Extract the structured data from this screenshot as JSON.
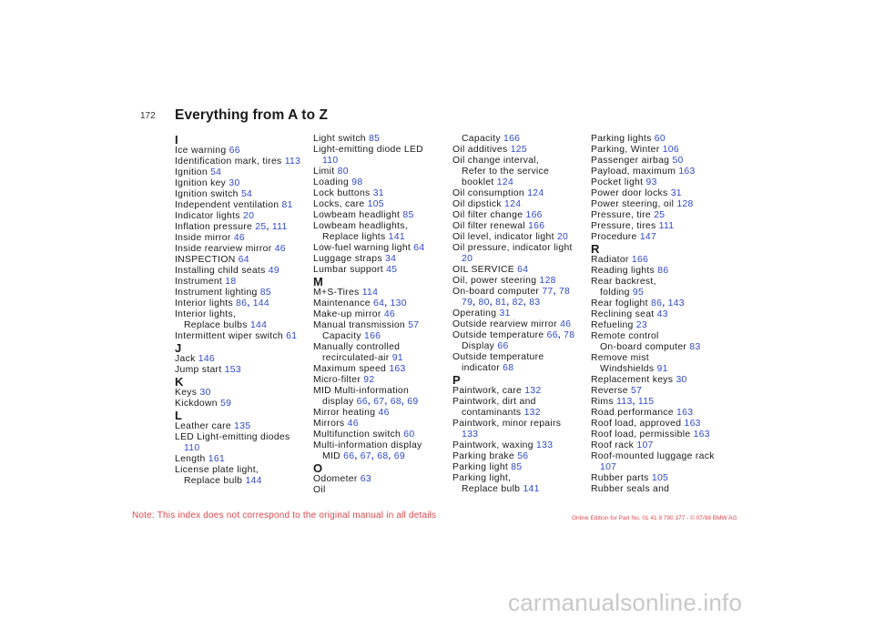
{
  "page": {
    "number": "172",
    "title": "Everything from A to Z",
    "note": "Note: This index does not correspond to the original manual in all details",
    "edition": "Online Edition for Part No. 01 41 9 790 377 - © 07/98 BMW AG",
    "watermark": "carmanualsonline.info"
  },
  "columns": [
    [
      {
        "type": "letter",
        "text": "I"
      },
      {
        "lines": [
          {
            "t": "Ice warning",
            "p": [
              "66"
            ]
          }
        ]
      },
      {
        "lines": [
          {
            "t": "Identification mark, tires",
            "p": [
              "113"
            ]
          }
        ]
      },
      {
        "lines": [
          {
            "t": "Ignition",
            "p": [
              "54"
            ]
          }
        ]
      },
      {
        "lines": [
          {
            "t": "Ignition key",
            "p": [
              "30"
            ]
          }
        ]
      },
      {
        "lines": [
          {
            "t": "Ignition switch",
            "p": [
              "54"
            ]
          }
        ]
      },
      {
        "lines": [
          {
            "t": "Independent ventilation",
            "p": [
              "81"
            ]
          }
        ]
      },
      {
        "lines": [
          {
            "t": "Indicator lights",
            "p": [
              "20"
            ]
          }
        ]
      },
      {
        "lines": [
          {
            "t": "Inflation pressure",
            "p": [
              "25",
              "111"
            ]
          }
        ]
      },
      {
        "lines": [
          {
            "t": "Inside mirror",
            "p": [
              "46"
            ]
          }
        ]
      },
      {
        "lines": [
          {
            "t": "Inside rearview mirror",
            "p": [
              "46"
            ]
          }
        ]
      },
      {
        "lines": [
          {
            "t": "INSPECTION",
            "p": [
              "64"
            ]
          }
        ]
      },
      {
        "lines": [
          {
            "t": "Installing child seats",
            "p": [
              "49"
            ]
          }
        ]
      },
      {
        "lines": [
          {
            "t": "Instrument",
            "p": [
              "18"
            ]
          }
        ]
      },
      {
        "lines": [
          {
            "t": "Instrument lighting",
            "p": [
              "85"
            ]
          }
        ]
      },
      {
        "lines": [
          {
            "t": "Interior lights",
            "p": [
              "86",
              "144"
            ]
          }
        ]
      },
      {
        "lines": [
          {
            "t": "Interior lights,"
          },
          {
            "t": "Replace bulbs",
            "p": [
              "144"
            ]
          }
        ]
      },
      {
        "lines": [
          {
            "t": "Intermittent wiper switch",
            "p": [
              "61"
            ]
          }
        ]
      },
      {
        "type": "letter",
        "text": "J"
      },
      {
        "lines": [
          {
            "t": "Jack",
            "p": [
              "146"
            ]
          }
        ]
      },
      {
        "lines": [
          {
            "t": "Jump start",
            "p": [
              "153"
            ]
          }
        ]
      },
      {
        "type": "letter",
        "text": "K"
      },
      {
        "lines": [
          {
            "t": "Keys",
            "p": [
              "30"
            ]
          }
        ]
      },
      {
        "lines": [
          {
            "t": "Kickdown",
            "p": [
              "59"
            ]
          }
        ]
      },
      {
        "type": "letter",
        "text": "L"
      },
      {
        "lines": [
          {
            "t": "Leather care",
            "p": [
              "135"
            ]
          }
        ]
      },
      {
        "lines": [
          {
            "t": "LED Light-emitting diodes"
          },
          {
            "t": "",
            "p": [
              "110"
            ]
          }
        ]
      },
      {
        "lines": [
          {
            "t": "Length",
            "p": [
              "161"
            ]
          }
        ]
      },
      {
        "lines": [
          {
            "t": "License plate light,"
          },
          {
            "t": "Replace bulb",
            "p": [
              "144"
            ]
          }
        ]
      }
    ],
    [
      {
        "lines": [
          {
            "t": "Light switch",
            "p": [
              "85"
            ]
          }
        ]
      },
      {
        "lines": [
          {
            "t": "Light-emitting diode LED"
          },
          {
            "t": "",
            "p": [
              "110"
            ]
          }
        ]
      },
      {
        "lines": [
          {
            "t": "Limit",
            "p": [
              "80"
            ]
          }
        ]
      },
      {
        "lines": [
          {
            "t": "Loading",
            "p": [
              "98"
            ]
          }
        ]
      },
      {
        "lines": [
          {
            "t": "Lock buttons",
            "p": [
              "31"
            ]
          }
        ]
      },
      {
        "lines": [
          {
            "t": "Locks, care",
            "p": [
              "105"
            ]
          }
        ]
      },
      {
        "lines": [
          {
            "t": "Lowbeam headlight",
            "p": [
              "85"
            ]
          }
        ]
      },
      {
        "lines": [
          {
            "t": "Lowbeam headlights,"
          },
          {
            "t": "Replace lights",
            "p": [
              "141"
            ]
          }
        ]
      },
      {
        "lines": [
          {
            "t": "Low-fuel warning light",
            "p": [
              "64"
            ]
          }
        ]
      },
      {
        "lines": [
          {
            "t": "Luggage straps",
            "p": [
              "34"
            ]
          }
        ]
      },
      {
        "lines": [
          {
            "t": "Lumbar support",
            "p": [
              "45"
            ]
          }
        ]
      },
      {
        "type": "letter",
        "text": "M"
      },
      {
        "lines": [
          {
            "t": "M+S-Tires",
            "p": [
              "114"
            ]
          }
        ]
      },
      {
        "lines": [
          {
            "t": "Maintenance",
            "p": [
              "64",
              "130"
            ]
          }
        ]
      },
      {
        "lines": [
          {
            "t": "Make-up mirror",
            "p": [
              "46"
            ]
          }
        ]
      },
      {
        "lines": [
          {
            "t": "Manual transmission",
            "p": [
              "57"
            ]
          },
          {
            "t": "Capacity",
            "p": [
              "166"
            ]
          }
        ]
      },
      {
        "lines": [
          {
            "t": "Manually controlled"
          },
          {
            "t": "recirculated-air",
            "p": [
              "91"
            ]
          }
        ]
      },
      {
        "lines": [
          {
            "t": "Maximum speed",
            "p": [
              "163"
            ]
          }
        ]
      },
      {
        "lines": [
          {
            "t": "Micro-filter",
            "p": [
              "92"
            ]
          }
        ]
      },
      {
        "lines": [
          {
            "t": "MID Multi-information"
          },
          {
            "t": "display",
            "p": [
              "66",
              "67",
              "68",
              "69"
            ]
          }
        ]
      },
      {
        "lines": [
          {
            "t": "Mirror heating",
            "p": [
              "46"
            ]
          }
        ]
      },
      {
        "lines": [
          {
            "t": "Mirrors",
            "p": [
              "46"
            ]
          }
        ]
      },
      {
        "lines": [
          {
            "t": "Multifunction switch",
            "p": [
              "60"
            ]
          }
        ]
      },
      {
        "lines": [
          {
            "t": "Multi-information display"
          },
          {
            "t": "MID",
            "p": [
              "66",
              "67",
              "68",
              "69"
            ]
          }
        ]
      },
      {
        "type": "letter",
        "text": "O"
      },
      {
        "lines": [
          {
            "t": "Odometer",
            "p": [
              "63"
            ]
          }
        ]
      },
      {
        "lines": [
          {
            "t": "Oil"
          }
        ]
      }
    ],
    [
      {
        "lines": [
          {
            "t": "",
            "cont": true
          },
          {
            "t": "Capacity",
            "p": [
              "166"
            ]
          }
        ]
      },
      {
        "lines": [
          {
            "t": "Oil additives",
            "p": [
              "125"
            ]
          }
        ]
      },
      {
        "lines": [
          {
            "t": "Oil change interval,"
          },
          {
            "t": "Refer to the service"
          },
          {
            "t": "booklet",
            "p": [
              "124"
            ]
          }
        ]
      },
      {
        "lines": [
          {
            "t": "Oil consumption",
            "p": [
              "124"
            ]
          }
        ]
      },
      {
        "lines": [
          {
            "t": "Oil dipstick",
            "p": [
              "124"
            ]
          }
        ]
      },
      {
        "lines": [
          {
            "t": "Oil filter change",
            "p": [
              "166"
            ]
          }
        ]
      },
      {
        "lines": [
          {
            "t": "Oil filter renewal",
            "p": [
              "166"
            ]
          }
        ]
      },
      {
        "lines": [
          {
            "t": "Oil level, indicator light",
            "p": [
              "20"
            ]
          }
        ]
      },
      {
        "lines": [
          {
            "t": "Oil pressure, indicator light"
          },
          {
            "t": "",
            "p": [
              "20"
            ]
          }
        ]
      },
      {
        "lines": [
          {
            "t": "OIL SERVICE",
            "p": [
              "64"
            ]
          }
        ]
      },
      {
        "lines": [
          {
            "t": "Oil, power steering",
            "p": [
              "128"
            ]
          }
        ]
      },
      {
        "lines": [
          {
            "t": "On-board computer",
            "p": [
              "77",
              "78"
            ]
          },
          {
            "t": "",
            "p": [
              "79",
              "80",
              "81",
              "82",
              "83"
            ]
          }
        ]
      },
      {
        "lines": [
          {
            "t": "Operating",
            "p": [
              "31"
            ]
          }
        ]
      },
      {
        "lines": [
          {
            "t": "Outside rearview mirror",
            "p": [
              "46"
            ]
          }
        ]
      },
      {
        "lines": [
          {
            "t": "Outside temperature",
            "p": [
              "66",
              "78"
            ]
          },
          {
            "t": "Display",
            "p": [
              "66"
            ]
          }
        ]
      },
      {
        "lines": [
          {
            "t": "Outside temperature"
          },
          {
            "t": "indicator",
            "p": [
              "68"
            ]
          }
        ]
      },
      {
        "type": "letter",
        "text": "P"
      },
      {
        "lines": [
          {
            "t": "Paintwork, care",
            "p": [
              "132"
            ]
          }
        ]
      },
      {
        "lines": [
          {
            "t": "Paintwork, dirt and"
          },
          {
            "t": "contaminants",
            "p": [
              "132"
            ]
          }
        ]
      },
      {
        "lines": [
          {
            "t": "Paintwork, minor repairs"
          },
          {
            "t": "",
            "p": [
              "133"
            ]
          }
        ]
      },
      {
        "lines": [
          {
            "t": "Paintwork, waxing",
            "p": [
              "133"
            ]
          }
        ]
      },
      {
        "lines": [
          {
            "t": "Parking brake",
            "p": [
              "56"
            ]
          }
        ]
      },
      {
        "lines": [
          {
            "t": "Parking light",
            "p": [
              "85"
            ]
          }
        ]
      },
      {
        "lines": [
          {
            "t": "Parking light,"
          },
          {
            "t": "Replace bulb",
            "p": [
              "141"
            ]
          }
        ]
      }
    ],
    [
      {
        "lines": [
          {
            "t": "Parking lights",
            "p": [
              "60"
            ]
          }
        ]
      },
      {
        "lines": [
          {
            "t": "Parking, Winter",
            "p": [
              "106"
            ]
          }
        ]
      },
      {
        "lines": [
          {
            "t": "Passenger airbag",
            "p": [
              "50"
            ]
          }
        ]
      },
      {
        "lines": [
          {
            "t": "Payload, maximum",
            "p": [
              "163"
            ]
          }
        ]
      },
      {
        "lines": [
          {
            "t": "Pocket light",
            "p": [
              "93"
            ]
          }
        ]
      },
      {
        "lines": [
          {
            "t": "Power door locks",
            "p": [
              "31"
            ]
          }
        ]
      },
      {
        "lines": [
          {
            "t": "Power steering, oil",
            "p": [
              "128"
            ]
          }
        ]
      },
      {
        "lines": [
          {
            "t": "Pressure, tire",
            "p": [
              "25"
            ]
          }
        ]
      },
      {
        "lines": [
          {
            "t": "Pressure, tires",
            "p": [
              "111"
            ]
          }
        ]
      },
      {
        "lines": [
          {
            "t": "Procedure",
            "p": [
              "147"
            ]
          }
        ]
      },
      {
        "type": "letter",
        "text": "R"
      },
      {
        "lines": [
          {
            "t": "Radiator",
            "p": [
              "166"
            ]
          }
        ]
      },
      {
        "lines": [
          {
            "t": "Reading lights",
            "p": [
              "86"
            ]
          }
        ]
      },
      {
        "lines": [
          {
            "t": "Rear backrest,"
          },
          {
            "t": "folding",
            "p": [
              "95"
            ]
          }
        ]
      },
      {
        "lines": [
          {
            "t": "Rear foglight",
            "p": [
              "86",
              "143"
            ]
          }
        ]
      },
      {
        "lines": [
          {
            "t": "Reclining seat",
            "p": [
              "43"
            ]
          }
        ]
      },
      {
        "lines": [
          {
            "t": "Refueling",
            "p": [
              "23"
            ]
          }
        ]
      },
      {
        "lines": [
          {
            "t": "Remote control"
          },
          {
            "t": "On-board computer",
            "p": [
              "83"
            ]
          }
        ]
      },
      {
        "lines": [
          {
            "t": "Remove mist"
          },
          {
            "t": "Windshields",
            "p": [
              "91"
            ]
          }
        ]
      },
      {
        "lines": [
          {
            "t": "Replacement keys",
            "p": [
              "30"
            ]
          }
        ]
      },
      {
        "lines": [
          {
            "t": "Reverse",
            "p": [
              "57"
            ]
          }
        ]
      },
      {
        "lines": [
          {
            "t": "Rims",
            "p": [
              "113",
              "115"
            ]
          }
        ]
      },
      {
        "lines": [
          {
            "t": "Road performance",
            "p": [
              "163"
            ]
          }
        ]
      },
      {
        "lines": [
          {
            "t": "Roof load, approved",
            "p": [
              "163"
            ]
          }
        ]
      },
      {
        "lines": [
          {
            "t": "Roof load, permissible",
            "p": [
              "163"
            ]
          }
        ]
      },
      {
        "lines": [
          {
            "t": "Roof rack",
            "p": [
              "107"
            ]
          }
        ]
      },
      {
        "lines": [
          {
            "t": "Roof-mounted luggage rack"
          },
          {
            "t": "",
            "p": [
              "107"
            ]
          }
        ]
      },
      {
        "lines": [
          {
            "t": "Rubber parts",
            "p": [
              "105"
            ]
          }
        ]
      },
      {
        "lines": [
          {
            "t": "Rubber seals and"
          }
        ]
      }
    ]
  ]
}
